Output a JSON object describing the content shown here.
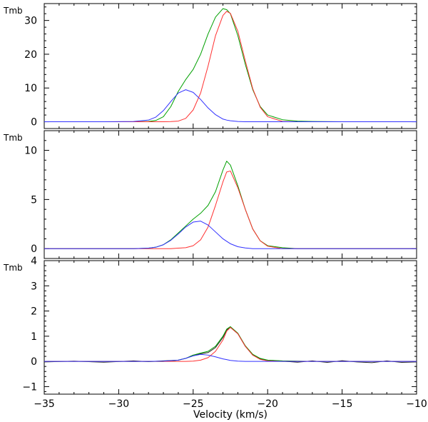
{
  "chart_data": [
    {
      "type": "line",
      "ylabel": "Tmb",
      "xlim": [
        -35,
        -10
      ],
      "ylim": [
        -2,
        35
      ],
      "yticks": [
        0,
        10,
        20,
        30
      ],
      "x": [
        -35,
        -33,
        -31,
        -29,
        -28,
        -27.5,
        -27,
        -26.5,
        -26,
        -25.5,
        -25,
        -24.5,
        -24,
        -23.5,
        -23,
        -22.75,
        -22.5,
        -22,
        -21.5,
        -21,
        -20.5,
        -20,
        -19,
        -18,
        -17,
        -15,
        -13,
        -11,
        -10
      ],
      "series": [
        {
          "values": [
            0,
            0,
            0,
            0,
            0.1,
            0.4,
            1.5,
            4.5,
            9.0,
            12.5,
            15.5,
            20.0,
            26.0,
            31.0,
            33.5,
            33.2,
            32.0,
            25.5,
            17.0,
            9.5,
            4.5,
            2.0,
            0.6,
            0.2,
            0.1,
            0,
            0,
            0,
            0
          ],
          "color": "#00a000"
        },
        {
          "values": [
            0,
            0,
            0,
            0,
            0,
            0,
            0,
            0.05,
            0.2,
            1.0,
            3.5,
            8.5,
            16.5,
            25.5,
            31.5,
            32.7,
            32.1,
            26.8,
            18.0,
            9.8,
            4.3,
            1.5,
            0.1,
            0,
            0,
            0,
            0,
            0,
            0
          ],
          "color": "#ff3030"
        },
        {
          "values": [
            0,
            0,
            0,
            0.1,
            0.5,
            1.4,
            3.3,
            6.0,
            8.5,
            9.5,
            8.7,
            6.6,
            4.1,
            2.1,
            0.8,
            0.5,
            0.3,
            0.1,
            0,
            0,
            0,
            0,
            0,
            0,
            0,
            0,
            0,
            0,
            0
          ],
          "color": "#3030ff"
        }
      ]
    },
    {
      "type": "line",
      "ylabel": "Tmb",
      "xlim": [
        -35,
        -10
      ],
      "ylim": [
        -1,
        12
      ],
      "yticks": [
        0,
        5,
        10
      ],
      "x": [
        -35,
        -33,
        -31,
        -29,
        -28,
        -27.5,
        -27,
        -26.5,
        -26,
        -25.5,
        -25,
        -24.5,
        -24,
        -23.5,
        -23,
        -22.75,
        -22.5,
        -22,
        -21.5,
        -21,
        -20.5,
        -20,
        -19,
        -18,
        -17,
        -15,
        -13,
        -11,
        -10
      ],
      "series": [
        {
          "values": [
            0,
            0,
            0,
            0,
            0.05,
            0.15,
            0.4,
            0.9,
            1.6,
            2.3,
            3.0,
            3.6,
            4.4,
            5.8,
            8.0,
            8.9,
            8.5,
            6.4,
            4.0,
            2.0,
            0.8,
            0.3,
            0.1,
            0,
            0,
            0,
            0,
            0,
            0
          ],
          "color": "#00a000"
        },
        {
          "values": [
            0,
            0,
            0,
            0,
            0,
            0,
            0,
            0,
            0.05,
            0.1,
            0.3,
            0.9,
            2.2,
            4.4,
            6.8,
            7.8,
            7.9,
            6.2,
            4.0,
            2.0,
            0.8,
            0.25,
            0,
            0,
            0,
            0,
            0,
            0,
            0
          ],
          "color": "#ff3030"
        },
        {
          "values": [
            0,
            0,
            0,
            0,
            0.05,
            0.15,
            0.4,
            0.85,
            1.5,
            2.2,
            2.7,
            2.8,
            2.4,
            1.7,
            1.0,
            0.75,
            0.5,
            0.2,
            0.07,
            0,
            0,
            0,
            0,
            0,
            0,
            0,
            0,
            0,
            0
          ],
          "color": "#3030ff"
        }
      ]
    },
    {
      "type": "line",
      "ylabel": "Tmb",
      "xlabel": "Velocity (km/s)",
      "xlim": [
        -35,
        -10
      ],
      "ylim": [
        -1.3,
        4
      ],
      "yticks": [
        -1,
        0,
        1,
        2,
        3,
        4
      ],
      "xticks": [
        -35,
        -30,
        -25,
        -20,
        -15,
        -10
      ],
      "x": [
        -35,
        -33,
        -31,
        -29,
        -28,
        -27,
        -26,
        -25.5,
        -25,
        -24.5,
        -24,
        -23.5,
        -23,
        -22.75,
        -22.5,
        -22,
        -21.5,
        -21,
        -20.5,
        -20,
        -19,
        -18,
        -17,
        -16,
        -15,
        -14,
        -13,
        -12,
        -11,
        -10
      ],
      "series": [
        {
          "values": [
            -0.02,
            0.01,
            -0.03,
            0.02,
            -0.01,
            0.02,
            0.05,
            0.12,
            0.25,
            0.3,
            0.35,
            0.55,
            0.95,
            1.25,
            1.35,
            1.1,
            0.6,
            0.25,
            0.1,
            0.05,
            0.01,
            -0.03,
            0.02,
            -0.04,
            0.03,
            -0.02,
            -0.05,
            0.02,
            -0.04,
            -0.02
          ],
          "color": "#222222"
        },
        {
          "values": [
            0,
            0,
            0,
            0,
            0,
            0,
            0.05,
            0.12,
            0.25,
            0.33,
            0.4,
            0.6,
            1.0,
            1.28,
            1.38,
            1.12,
            0.62,
            0.28,
            0.12,
            0.05,
            0.02,
            0.01,
            0,
            0,
            0,
            0,
            0,
            0,
            0,
            0
          ],
          "color": "#00a000"
        },
        {
          "values": [
            0,
            0,
            0,
            0,
            0,
            0,
            0,
            0,
            0.01,
            0.05,
            0.15,
            0.4,
            0.85,
            1.2,
            1.35,
            1.1,
            0.6,
            0.25,
            0.08,
            0.02,
            0,
            0,
            0,
            0,
            0,
            0,
            0,
            0,
            0,
            0
          ],
          "color": "#ff3030"
        },
        {
          "values": [
            0,
            0,
            0,
            0,
            0,
            0.01,
            0.05,
            0.12,
            0.22,
            0.28,
            0.25,
            0.18,
            0.1,
            0.07,
            0.04,
            0.01,
            0,
            0,
            0,
            0,
            0,
            0,
            0,
            0,
            0,
            0,
            0,
            0,
            0,
            0
          ],
          "color": "#3030ff"
        }
      ]
    }
  ]
}
